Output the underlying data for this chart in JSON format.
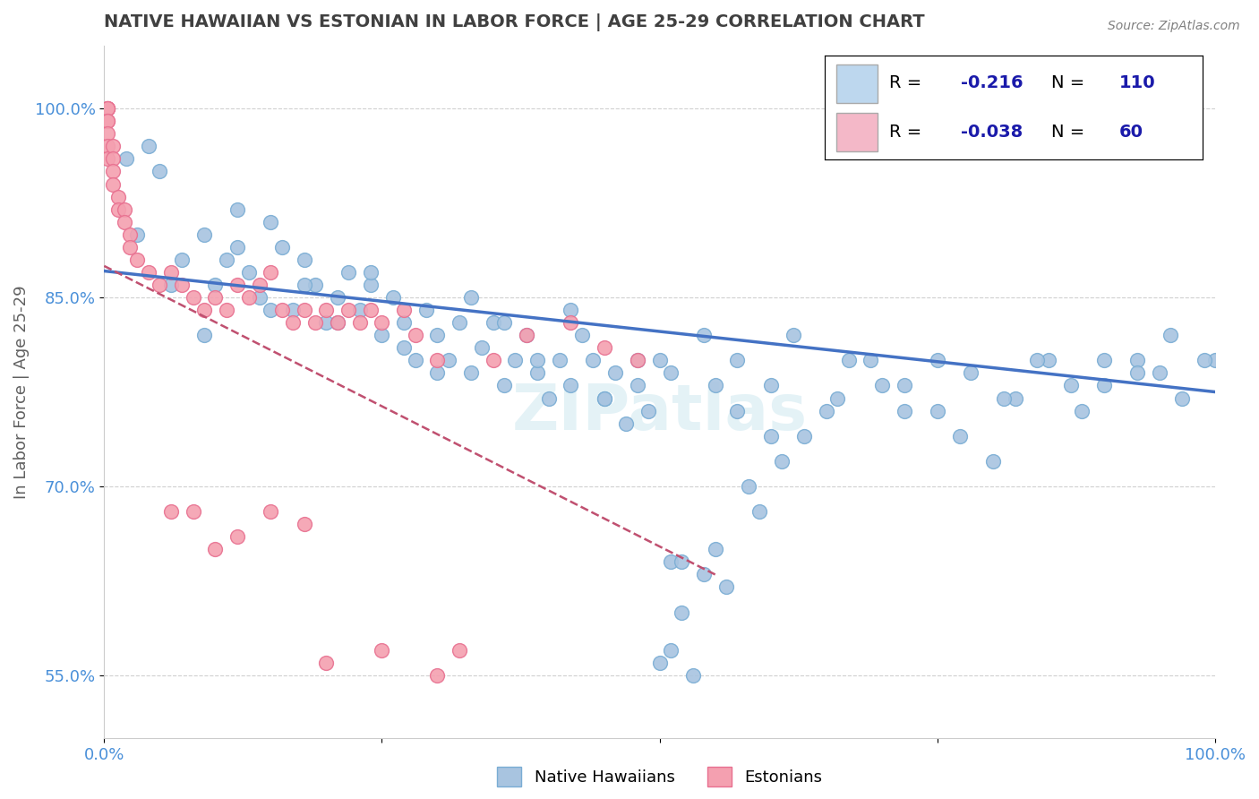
{
  "title": "NATIVE HAWAIIAN VS ESTONIAN IN LABOR FORCE | AGE 25-29 CORRELATION CHART",
  "source_text": "Source: ZipAtlas.com",
  "ylabel": "In Labor Force | Age 25-29",
  "xlim": [
    0.0,
    1.0
  ],
  "ylim": [
    0.5,
    1.05
  ],
  "yticks": [
    0.55,
    0.7,
    0.85,
    1.0
  ],
  "ytick_labels": [
    "55.0%",
    "70.0%",
    "85.0%",
    "100.0%"
  ],
  "xticks": [
    0.0,
    0.25,
    0.5,
    0.75,
    1.0
  ],
  "xtick_labels": [
    "0.0%",
    "",
    "",
    "",
    "100.0%"
  ],
  "legend": {
    "blue_r": "-0.216",
    "blue_n": "110",
    "pink_r": "-0.038",
    "pink_n": "60"
  },
  "blue_scatter": {
    "x": [
      0.02,
      0.04,
      0.05,
      0.07,
      0.09,
      0.1,
      0.11,
      0.12,
      0.13,
      0.14,
      0.15,
      0.16,
      0.17,
      0.18,
      0.19,
      0.2,
      0.21,
      0.22,
      0.23,
      0.24,
      0.25,
      0.26,
      0.27,
      0.28,
      0.29,
      0.3,
      0.31,
      0.32,
      0.33,
      0.34,
      0.35,
      0.36,
      0.37,
      0.38,
      0.39,
      0.4,
      0.41,
      0.42,
      0.43,
      0.44,
      0.45,
      0.46,
      0.47,
      0.48,
      0.49,
      0.5,
      0.51,
      0.52,
      0.55,
      0.57,
      0.6,
      0.62,
      0.65,
      0.67,
      0.7,
      0.72,
      0.75,
      0.77,
      0.8,
      0.82,
      0.85,
      0.88,
      0.9,
      0.93,
      0.95,
      0.97,
      1.0,
      0.03,
      0.06,
      0.09,
      0.12,
      0.15,
      0.18,
      0.21,
      0.24,
      0.27,
      0.3,
      0.33,
      0.36,
      0.39,
      0.42,
      0.45,
      0.48,
      0.51,
      0.54,
      0.57,
      0.6,
      0.63,
      0.66,
      0.69,
      0.72,
      0.75,
      0.78,
      0.81,
      0.84,
      0.87,
      0.9,
      0.93,
      0.96,
      0.99,
      0.5,
      0.51,
      0.52,
      0.53,
      0.54,
      0.55,
      0.56,
      0.58,
      0.59,
      0.61
    ],
    "y": [
      0.96,
      0.97,
      0.95,
      0.88,
      0.9,
      0.86,
      0.88,
      0.92,
      0.87,
      0.85,
      0.91,
      0.89,
      0.84,
      0.88,
      0.86,
      0.83,
      0.85,
      0.87,
      0.84,
      0.86,
      0.82,
      0.85,
      0.83,
      0.8,
      0.84,
      0.82,
      0.8,
      0.83,
      0.79,
      0.81,
      0.83,
      0.78,
      0.8,
      0.82,
      0.79,
      0.77,
      0.8,
      0.78,
      0.82,
      0.8,
      0.77,
      0.79,
      0.75,
      0.78,
      0.76,
      0.8,
      0.64,
      0.64,
      0.78,
      0.76,
      0.74,
      0.82,
      0.76,
      0.8,
      0.78,
      0.76,
      0.8,
      0.74,
      0.72,
      0.77,
      0.8,
      0.76,
      0.78,
      0.8,
      0.79,
      0.77,
      0.8,
      0.9,
      0.86,
      0.82,
      0.89,
      0.84,
      0.86,
      0.83,
      0.87,
      0.81,
      0.79,
      0.85,
      0.83,
      0.8,
      0.84,
      0.77,
      0.8,
      0.79,
      0.82,
      0.8,
      0.78,
      0.74,
      0.77,
      0.8,
      0.78,
      0.76,
      0.79,
      0.77,
      0.8,
      0.78,
      0.8,
      0.79,
      0.82,
      0.8,
      0.56,
      0.57,
      0.6,
      0.55,
      0.63,
      0.65,
      0.62,
      0.7,
      0.68,
      0.72
    ]
  },
  "pink_scatter": {
    "x": [
      0.003,
      0.003,
      0.003,
      0.003,
      0.003,
      0.003,
      0.003,
      0.003,
      0.003,
      0.008,
      0.008,
      0.008,
      0.008,
      0.013,
      0.013,
      0.018,
      0.018,
      0.023,
      0.023,
      0.03,
      0.04,
      0.05,
      0.06,
      0.07,
      0.08,
      0.09,
      0.1,
      0.11,
      0.12,
      0.13,
      0.14,
      0.15,
      0.16,
      0.17,
      0.18,
      0.19,
      0.2,
      0.21,
      0.22,
      0.23,
      0.24,
      0.25,
      0.27,
      0.28,
      0.3,
      0.32,
      0.35,
      0.38,
      0.42,
      0.45,
      0.48,
      0.3,
      0.2,
      0.25,
      0.15,
      0.18,
      0.12,
      0.1,
      0.08,
      0.06
    ],
    "y": [
      1.0,
      1.0,
      1.0,
      1.0,
      0.99,
      0.99,
      0.98,
      0.97,
      0.96,
      0.97,
      0.96,
      0.95,
      0.94,
      0.93,
      0.92,
      0.92,
      0.91,
      0.9,
      0.89,
      0.88,
      0.87,
      0.86,
      0.87,
      0.86,
      0.85,
      0.84,
      0.85,
      0.84,
      0.86,
      0.85,
      0.86,
      0.87,
      0.84,
      0.83,
      0.84,
      0.83,
      0.84,
      0.83,
      0.84,
      0.83,
      0.84,
      0.83,
      0.84,
      0.82,
      0.8,
      0.57,
      0.8,
      0.82,
      0.83,
      0.81,
      0.8,
      0.55,
      0.56,
      0.57,
      0.68,
      0.67,
      0.66,
      0.65,
      0.68,
      0.68
    ]
  },
  "blue_line": {
    "x0": 0.0,
    "y0": 0.871,
    "x1": 1.0,
    "y1": 0.775
  },
  "pink_line": {
    "x0": 0.0,
    "y0": 0.875,
    "x1": 0.55,
    "y1": 0.63
  },
  "watermark": "ZIPatlas",
  "colors": {
    "blue_scatter": "#a8c4e0",
    "blue_scatter_edge": "#7aadd4",
    "pink_scatter": "#f4a0b0",
    "pink_scatter_edge": "#e87090",
    "blue_line": "#4472c4",
    "pink_line": "#c05070",
    "grid": "#d0d0d0",
    "background": "#ffffff",
    "title": "#404040",
    "axis_label": "#606060",
    "tick_label": "#4a90d9",
    "legend_blue_fill": "#bdd7ee",
    "legend_pink_fill": "#f4b8c8"
  }
}
